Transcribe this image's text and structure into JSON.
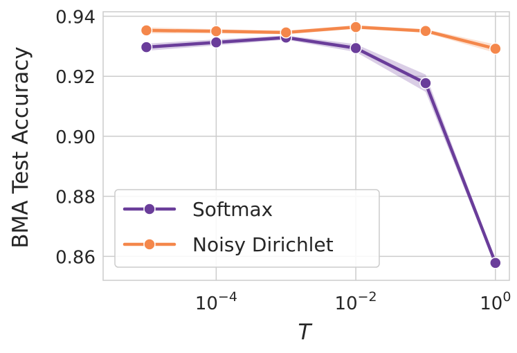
{
  "chart_data": {
    "type": "line",
    "xlabel": "T",
    "ylabel": "BMA Test Accuracy",
    "x_scale": "log",
    "x": [
      1e-05,
      0.0001,
      0.001,
      0.01,
      0.1,
      1
    ],
    "x_ticks": [
      {
        "value": 0.0001,
        "base": "10",
        "exp": "−4"
      },
      {
        "value": 0.01,
        "base": "10",
        "exp": "−2"
      },
      {
        "value": 1,
        "base": "10",
        "exp": "0"
      }
    ],
    "y_ticks": [
      "0.86",
      "0.88",
      "0.90",
      "0.92",
      "0.94"
    ],
    "y_tick_values": [
      0.86,
      0.88,
      0.9,
      0.92,
      0.94
    ],
    "ylim": [
      0.852,
      0.9415
    ],
    "xlim_log10": [
      -5.62,
      0.2
    ],
    "grid": true,
    "legend_position": "lower-left",
    "series": [
      {
        "name": "Softmax",
        "color": "#6a3d9a",
        "values": [
          0.9297,
          0.9313,
          0.9329,
          0.9294,
          0.9177,
          0.8578
        ],
        "lower": [
          0.9285,
          0.9303,
          0.9322,
          0.9281,
          0.9148,
          0.8568
        ],
        "upper": [
          0.9309,
          0.9323,
          0.9336,
          0.9307,
          0.9206,
          0.8588
        ]
      },
      {
        "name": "Noisy Dirichlet",
        "color": "#f4874b",
        "values": [
          0.9353,
          0.935,
          0.9346,
          0.9364,
          0.9351,
          0.9292
        ],
        "lower": [
          0.9343,
          0.9343,
          0.934,
          0.9358,
          0.9345,
          0.9278
        ],
        "upper": [
          0.9363,
          0.9357,
          0.9352,
          0.937,
          0.9357,
          0.9306
        ]
      }
    ]
  }
}
